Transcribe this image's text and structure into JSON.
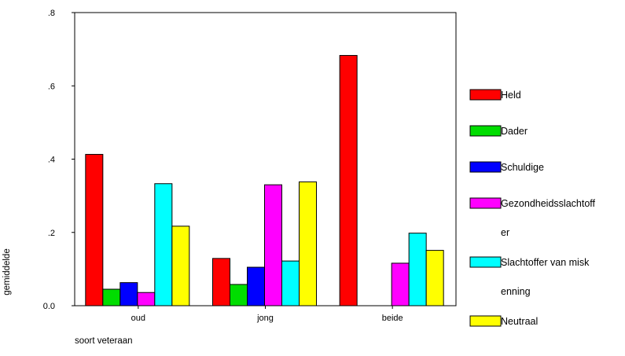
{
  "chart_data": {
    "type": "bar",
    "title": "",
    "xlabel": "soort veteraan",
    "ylabel": "gemiddelde",
    "ylim": [
      0,
      0.8
    ],
    "yticks": [
      {
        "value": 0.0,
        "label": "0.0"
      },
      {
        "value": 0.2,
        "label": ".2"
      },
      {
        "value": 0.4,
        "label": ".4"
      },
      {
        "value": 0.6,
        "label": ".6"
      },
      {
        "value": 0.8,
        "label": ".8"
      }
    ],
    "categories": [
      "oud",
      "jong",
      "beide"
    ],
    "grid": false,
    "legend_position": "right",
    "series": [
      {
        "name": "Held",
        "color": "#ff0000",
        "values": [
          0.413,
          0.129,
          0.683
        ]
      },
      {
        "name": "Dader",
        "color": "#00dd00",
        "values": [
          0.045,
          0.058,
          0.0
        ]
      },
      {
        "name": "Schuldige",
        "color": "#0000ff",
        "values": [
          0.063,
          0.105,
          0.0
        ]
      },
      {
        "name": "Gezondheidsslachtoffer",
        "color": "#ff00ff",
        "values": [
          0.036,
          0.33,
          0.116
        ],
        "legend_lines": [
          "Gezondheidsslachtoff",
          "er"
        ]
      },
      {
        "name": "Slachtoffer van miskenning",
        "color": "#00ffff",
        "values": [
          0.333,
          0.122,
          0.198
        ],
        "legend_lines": [
          "Slachtoffer van misk",
          "enning"
        ]
      },
      {
        "name": "Neutraal",
        "color": "#ffff00",
        "values": [
          0.217,
          0.338,
          0.151
        ]
      }
    ]
  }
}
